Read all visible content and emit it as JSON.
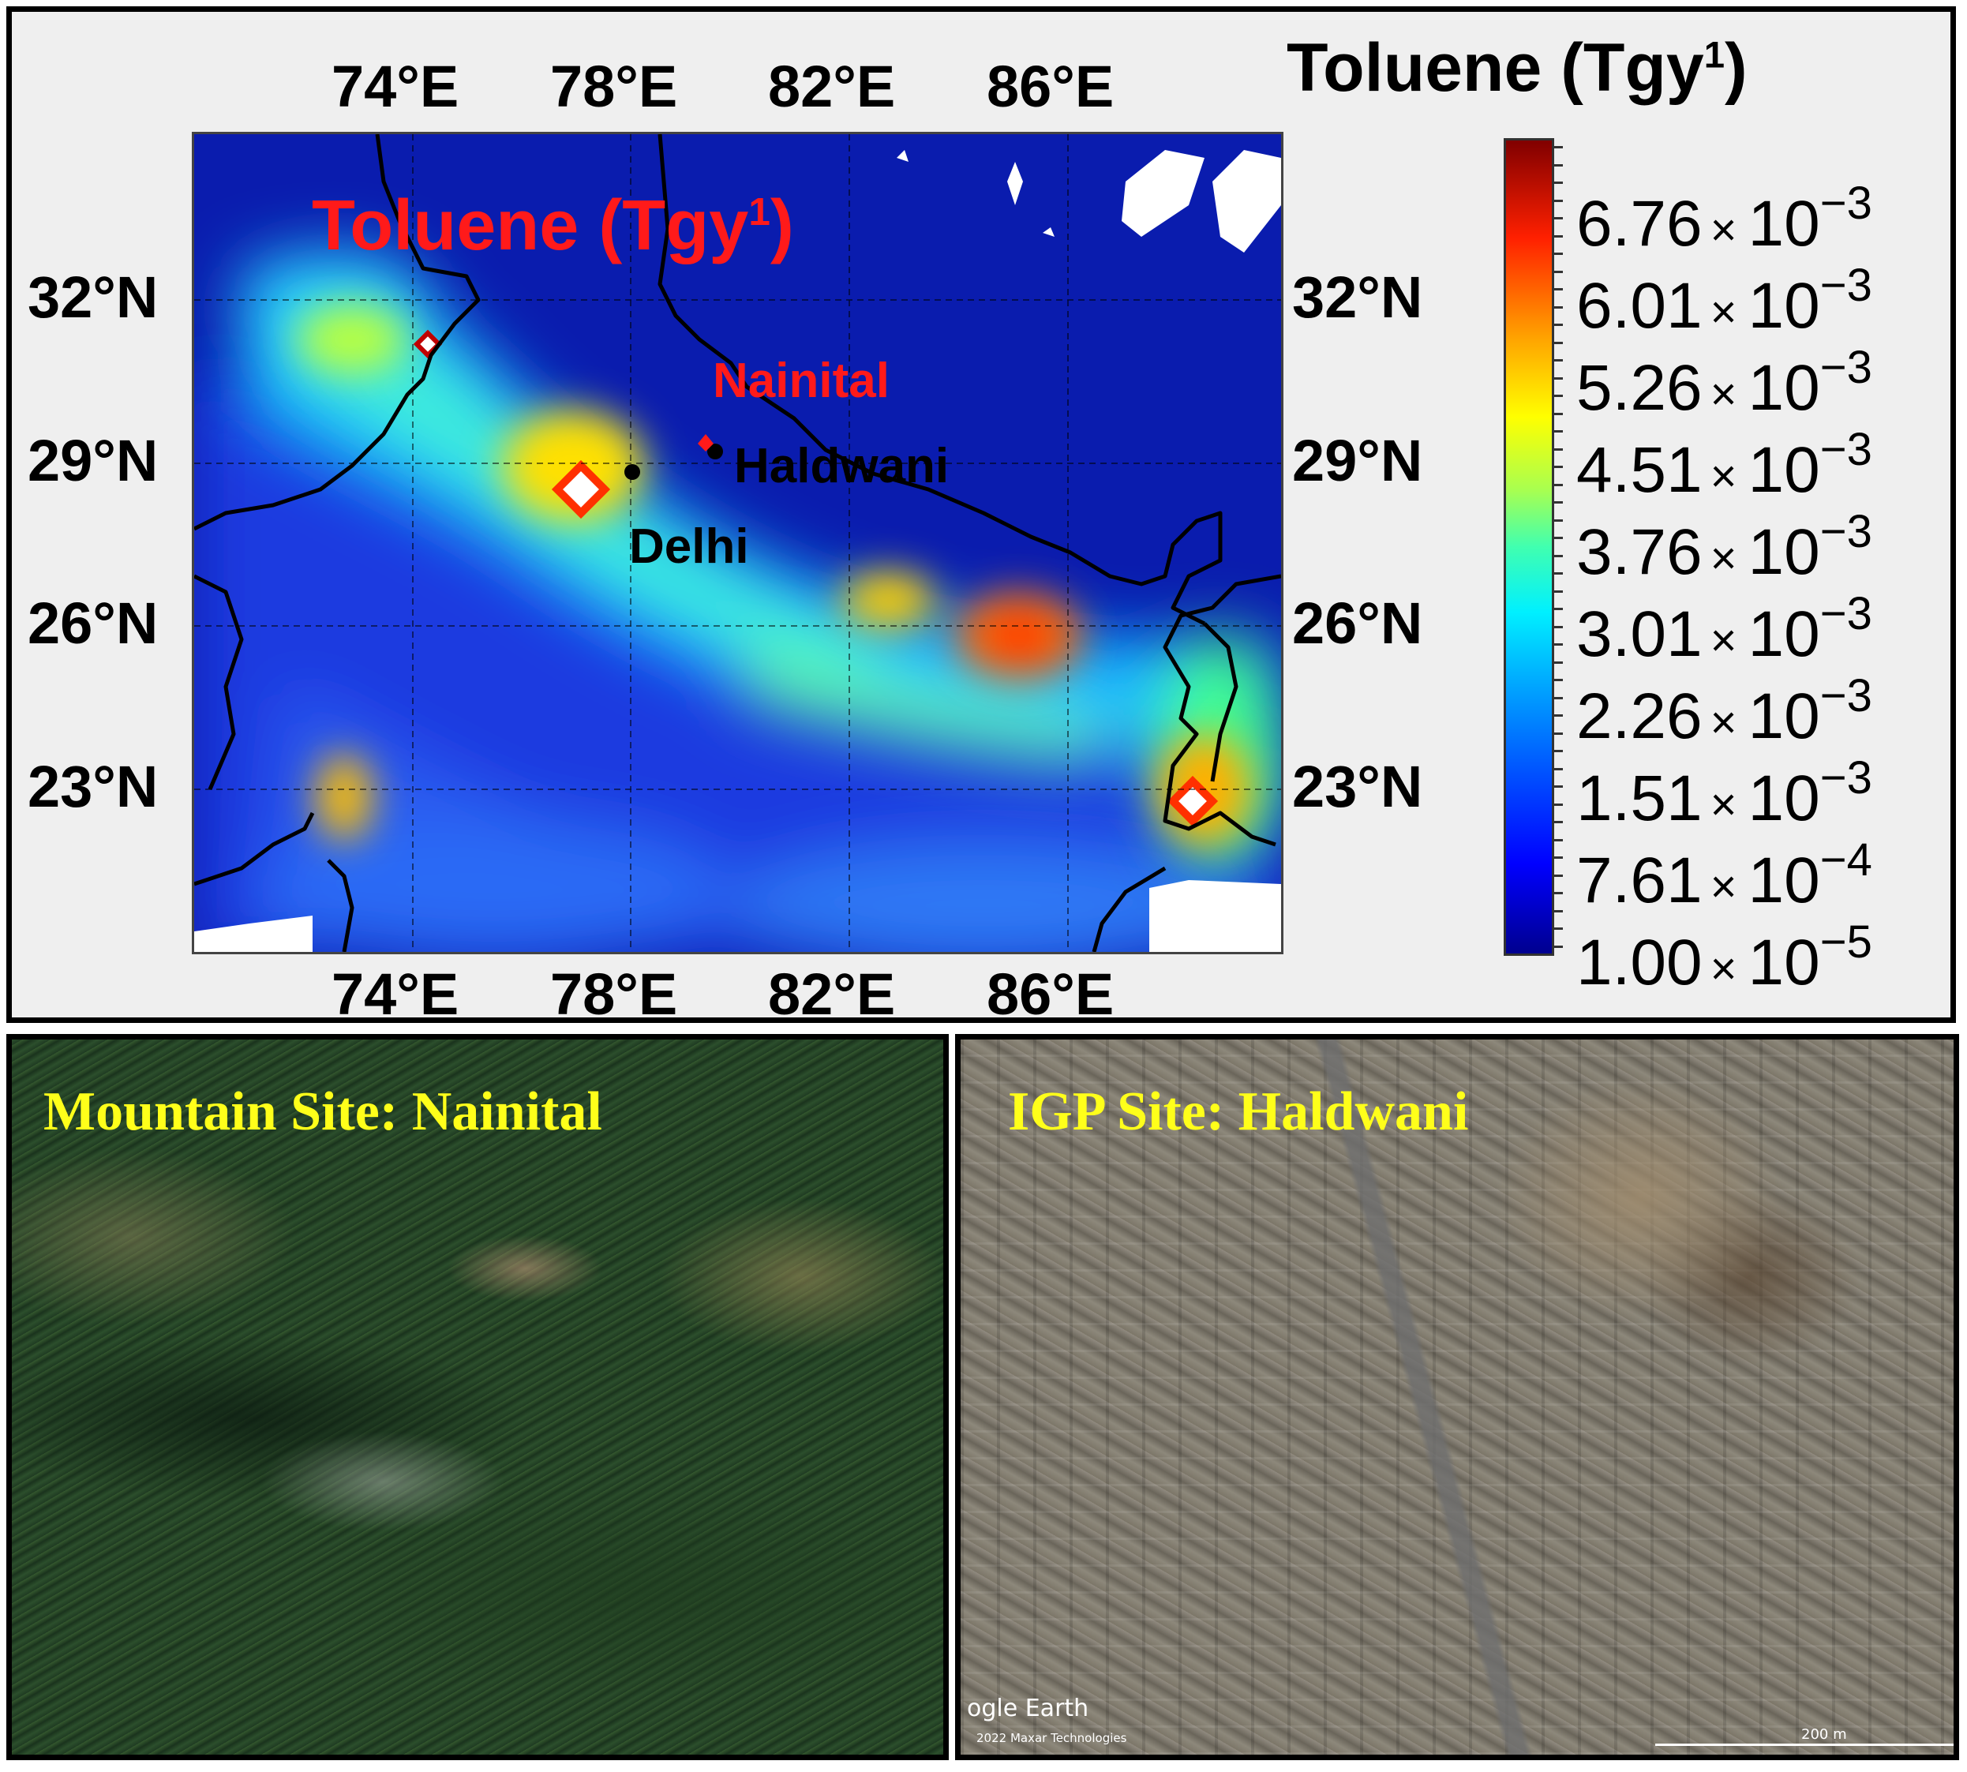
{
  "map": {
    "colorbar_title": "Toluene (Tgy",
    "colorbar_title_sup": "1",
    "colorbar_title_close": ")",
    "overlay_title": "Toluene (Tgy",
    "overlay_title_sup": "1",
    "overlay_title_close": ")",
    "lon_ticks": [
      "74°E",
      "78°E",
      "82°E",
      "86°E"
    ],
    "lat_ticks": [
      "32°N",
      "29°N",
      "26°N",
      "23°N"
    ],
    "colorbar_ticks": [
      {
        "mantissa": "6.76",
        "exponent": "−3"
      },
      {
        "mantissa": "6.01",
        "exponent": "−3"
      },
      {
        "mantissa": "5.26",
        "exponent": "−3"
      },
      {
        "mantissa": "4.51",
        "exponent": "−3"
      },
      {
        "mantissa": "3.76",
        "exponent": "−3"
      },
      {
        "mantissa": "3.01",
        "exponent": "−3"
      },
      {
        "mantissa": "2.26",
        "exponent": "−3"
      },
      {
        "mantissa": "1.51",
        "exponent": "−3"
      },
      {
        "mantissa": "7.61",
        "exponent": "−4"
      },
      {
        "mantissa": "1.00",
        "exponent": "−5"
      }
    ],
    "times_sign": "×",
    "tick_base": "10",
    "places": {
      "nainital": "Nainital",
      "haldwani": "Haldwani",
      "delhi": "Delhi"
    },
    "colors": {
      "ocean": "#0a1cae",
      "label_red": "#ff1a1a",
      "hotspot": "#ffffff"
    }
  },
  "photos": {
    "left_title": "Mountain Site: Nainital",
    "right_title": "IGP Site: Haldwani",
    "attribution": "ogle Earth",
    "copyright": "2022 Maxar Technologies",
    "scale_label": "200 m",
    "title_color": "#ffff1a"
  }
}
